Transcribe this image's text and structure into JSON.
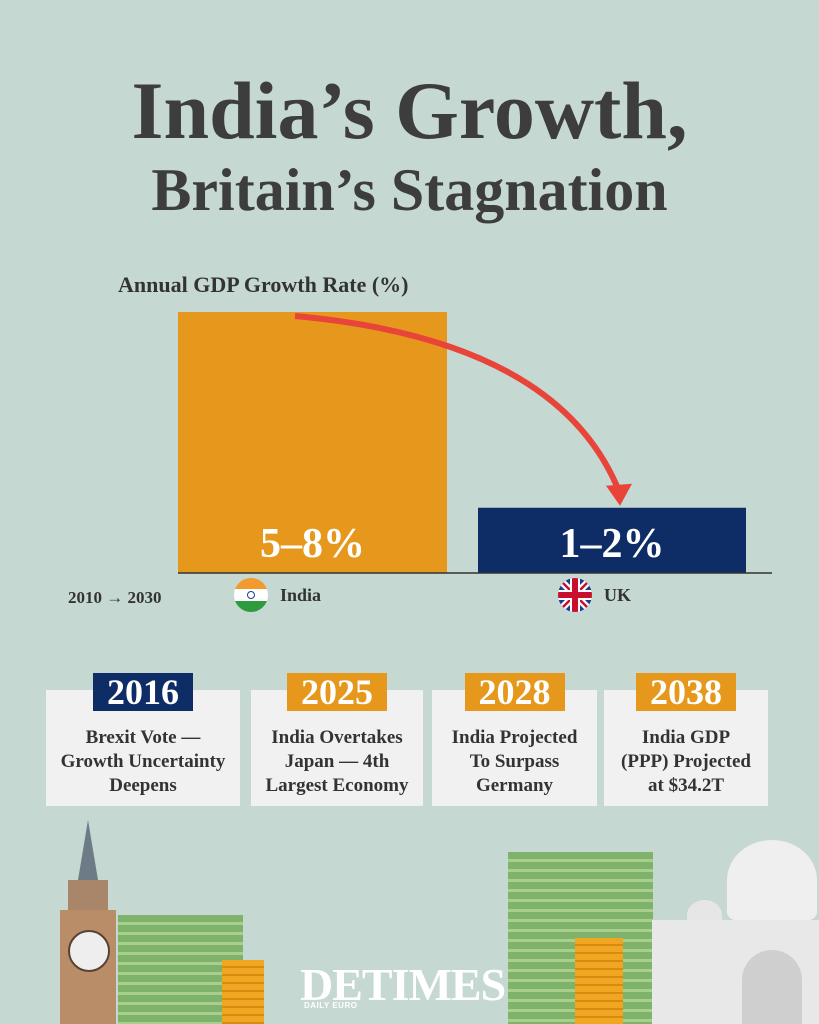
{
  "title_line1": "India’s Growth,",
  "title_line2": "Britain’s Stagnation",
  "chart_data": {
    "type": "bar",
    "title": "Annual GDP Growth Rate (%)",
    "categories": [
      "India",
      "UK"
    ],
    "series": [
      {
        "values": [
          [
            5,
            8
          ],
          [
            1,
            2
          ]
        ]
      }
    ],
    "data_labels": [
      "5–8%",
      "1–2%"
    ],
    "colors": [
      "#e6981c",
      "#0e2d66"
    ],
    "ylim": [
      0,
      8
    ],
    "period": "2010 → 2030",
    "annotation": "red arrow from India bar down to UK bar",
    "arrow_color": "#e8443a"
  },
  "timeline": [
    {
      "year": "2016",
      "text": [
        "Brexit Vote —",
        "Growth Uncertainty",
        "Deepens"
      ],
      "color": "#0e2d66"
    },
    {
      "year": "2025",
      "text": [
        "India Overtakes",
        "Japan — 4th",
        "Largest Economy"
      ],
      "color": "#e6981c"
    },
    {
      "year": "2028",
      "text": [
        "India Projected",
        "To Surpass",
        "Germany"
      ],
      "color": "#e6981c"
    },
    {
      "year": "2038",
      "text": [
        "India GDP",
        "(PPP) Projected",
        "at $34.2T"
      ],
      "color": "#e6981c"
    }
  ],
  "logo": {
    "main": "DETIMES",
    "sub": "DAILY EURO"
  }
}
